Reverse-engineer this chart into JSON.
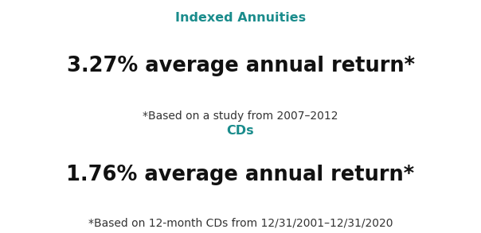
{
  "bg_color": "#ffffff",
  "teal_color": "#1a8c8c",
  "black_color": "#111111",
  "gray_color": "#333333",
  "section1": {
    "label": "Indexed Annuities",
    "main_text": "3.27% average annual return*",
    "footnote": "*Based on a study from 2007–2012"
  },
  "section2": {
    "label": "CDs",
    "main_text": "1.76% average annual return*",
    "footnote": "*Based on 12-month CDs from 12/31/2001–12/31/2020"
  },
  "label_fontsize": 11.5,
  "main_fontsize": 18.5,
  "footnote_fontsize": 10,
  "figsize": [
    6.04,
    2.93
  ],
  "dpi": 100
}
